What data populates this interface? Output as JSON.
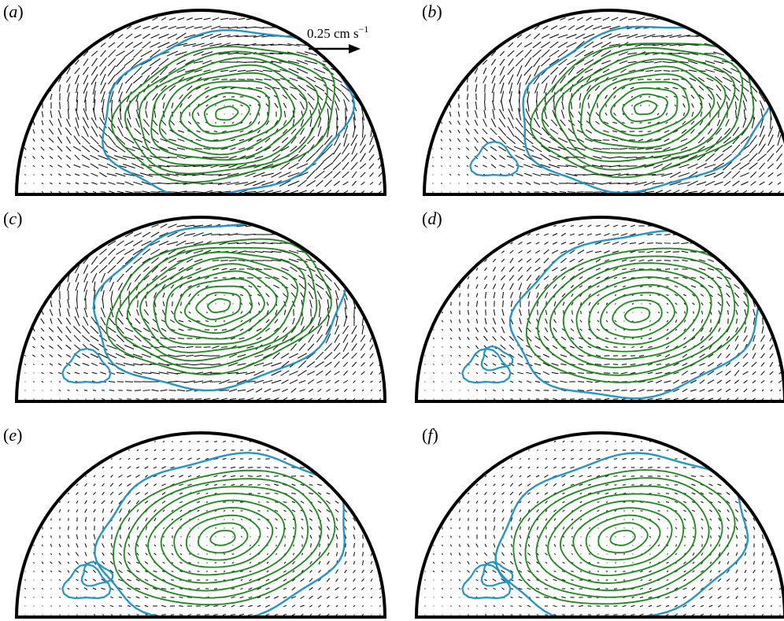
{
  "panels": [
    {
      "id": "a",
      "strength": 1.0,
      "center": [
        0.57,
        0.44
      ],
      "blue_blobs": 0
    },
    {
      "id": "b",
      "strength": 0.95,
      "center": [
        0.6,
        0.47
      ],
      "blue_blobs": 1
    },
    {
      "id": "c",
      "strength": 0.85,
      "center": [
        0.55,
        0.52
      ],
      "blue_blobs": 1
    },
    {
      "id": "d",
      "strength": 0.55,
      "center": [
        0.6,
        0.47
      ],
      "blue_blobs": 2
    },
    {
      "id": "e",
      "strength": 0.35,
      "center": [
        0.56,
        0.43
      ],
      "blue_blobs": 2
    },
    {
      "id": "f",
      "strength": 0.3,
      "center": [
        0.56,
        0.43
      ],
      "blue_blobs": 2
    }
  ],
  "scale_bar": {
    "label": "0.25 cm s",
    "exponent": "−1"
  },
  "colors": {
    "boundary": "#000000",
    "streamline": "#1a8a1a",
    "contour": "#2196c8",
    "vector": "#000000"
  }
}
